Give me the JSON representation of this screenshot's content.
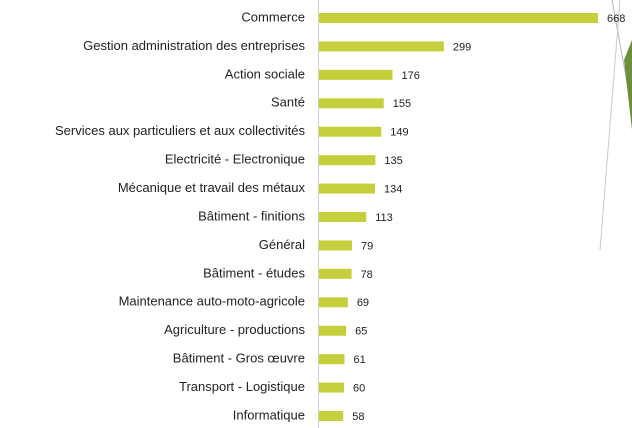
{
  "chart_data": {
    "type": "bar",
    "orientation": "horizontal",
    "categories": [
      "Commerce",
      "Gestion administration des entreprises",
      "Action sociale",
      "Santé",
      "Services aux particuliers et aux collectivités",
      "Electricité - Electronique",
      "Mécanique et travail des métaux",
      "Bâtiment - finitions",
      "Général",
      "Bâtiment - études",
      "Maintenance auto-moto-agricole",
      "Agriculture - productions",
      "Bâtiment - Gros œuvre",
      "Transport - Logistique",
      "Informatique"
    ],
    "values": [
      668,
      299,
      176,
      155,
      149,
      135,
      134,
      113,
      79,
      78,
      69,
      65,
      61,
      60,
      58
    ],
    "color": "#c5cf3c"
  }
}
